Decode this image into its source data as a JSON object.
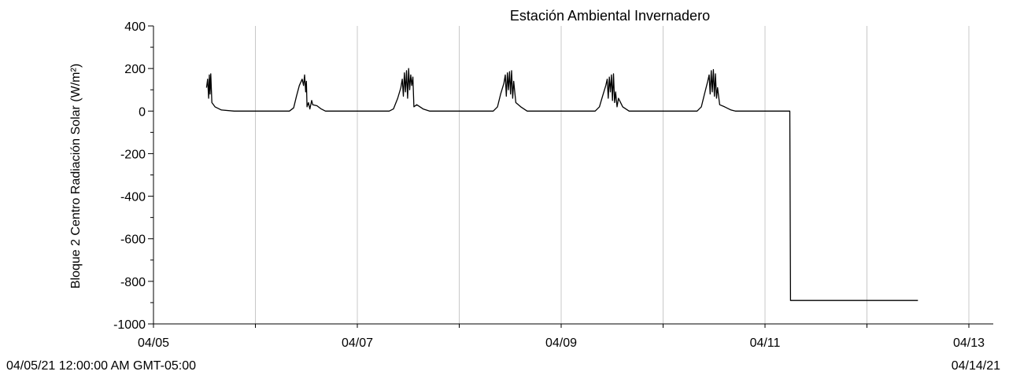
{
  "chart_data": {
    "type": "line",
    "title": "Estación Ambiental Invernadero",
    "ylabel": "Bloque 2 Centro Radiación Solar (W/m²)",
    "xlabel": "",
    "ylim": [
      -1000,
      400
    ],
    "yticks": [
      400,
      200,
      0,
      -200,
      -400,
      -600,
      -800,
      -1000
    ],
    "xlim": [
      "2021-04-05",
      "2021-04-13"
    ],
    "xtick_labels": [
      {
        "x": "2021-04-05",
        "label": "04/05"
      },
      {
        "x": "2021-04-07",
        "label": "04/07"
      },
      {
        "x": "2021-04-09",
        "label": "04/09"
      },
      {
        "x": "2021-04-11",
        "label": "04/11"
      },
      {
        "x": "2021-04-13",
        "label": "04/13"
      }
    ],
    "vertical_grid": [
      "2021-04-06",
      "2021-04-07",
      "2021-04-08",
      "2021-04-09",
      "2021-04-10",
      "2021-04-11",
      "2021-04-12",
      "2021-04-13"
    ],
    "grid": "vertical",
    "legend": "none",
    "line_color": "#000000",
    "series": [
      {
        "values": [
          [
            "2021-04-05 12:30",
            110
          ],
          [
            "2021-04-05 12:45",
            150
          ],
          [
            "2021-04-05 13:00",
            60
          ],
          [
            "2021-04-05 13:10",
            170
          ],
          [
            "2021-04-05 13:20",
            80
          ],
          [
            "2021-04-05 13:30",
            175
          ],
          [
            "2021-04-05 13:45",
            40
          ],
          [
            "2021-04-05 14:30",
            20
          ],
          [
            "2021-04-05 16:00",
            5
          ],
          [
            "2021-04-05 19:00",
            0
          ],
          [
            "2021-04-06 08:00",
            0
          ],
          [
            "2021-04-06 09:00",
            15
          ],
          [
            "2021-04-06 09:40",
            70
          ],
          [
            "2021-04-06 10:20",
            120
          ],
          [
            "2021-04-06 11:00",
            150
          ],
          [
            "2021-04-06 11:20",
            120
          ],
          [
            "2021-04-06 11:35",
            170
          ],
          [
            "2021-04-06 11:50",
            90
          ],
          [
            "2021-04-06 12:00",
            140
          ],
          [
            "2021-04-06 12:10",
            20
          ],
          [
            "2021-04-06 12:30",
            40
          ],
          [
            "2021-04-06 12:50",
            10
          ],
          [
            "2021-04-06 13:15",
            50
          ],
          [
            "2021-04-06 13:30",
            30
          ],
          [
            "2021-04-06 14:30",
            25
          ],
          [
            "2021-04-06 15:30",
            10
          ],
          [
            "2021-04-06 16:30",
            0
          ],
          [
            "2021-04-07 07:30",
            0
          ],
          [
            "2021-04-07 08:30",
            10
          ],
          [
            "2021-04-07 09:30",
            60
          ],
          [
            "2021-04-07 10:15",
            110
          ],
          [
            "2021-04-07 10:35",
            150
          ],
          [
            "2021-04-07 10:50",
            70
          ],
          [
            "2021-04-07 11:05",
            180
          ],
          [
            "2021-04-07 11:20",
            90
          ],
          [
            "2021-04-07 11:35",
            190
          ],
          [
            "2021-04-07 11:50",
            60
          ],
          [
            "2021-04-07 12:05",
            200
          ],
          [
            "2021-04-07 12:20",
            100
          ],
          [
            "2021-04-07 12:35",
            170
          ],
          [
            "2021-04-07 12:50",
            120
          ],
          [
            "2021-04-07 13:05",
            160
          ],
          [
            "2021-04-07 13:20",
            20
          ],
          [
            "2021-04-07 14:00",
            30
          ],
          [
            "2021-04-07 15:30",
            10
          ],
          [
            "2021-04-07 17:00",
            0
          ],
          [
            "2021-04-08 08:00",
            0
          ],
          [
            "2021-04-08 09:00",
            20
          ],
          [
            "2021-04-08 09:45",
            80
          ],
          [
            "2021-04-08 10:30",
            130
          ],
          [
            "2021-04-08 10:50",
            170
          ],
          [
            "2021-04-08 11:05",
            70
          ],
          [
            "2021-04-08 11:20",
            180
          ],
          [
            "2021-04-08 11:35",
            100
          ],
          [
            "2021-04-08 11:50",
            185
          ],
          [
            "2021-04-08 12:05",
            80
          ],
          [
            "2021-04-08 12:20",
            190
          ],
          [
            "2021-04-08 12:35",
            60
          ],
          [
            "2021-04-08 12:50",
            140
          ],
          [
            "2021-04-08 13:20",
            40
          ],
          [
            "2021-04-08 14:30",
            20
          ],
          [
            "2021-04-08 16:00",
            0
          ],
          [
            "2021-04-09 08:00",
            0
          ],
          [
            "2021-04-09 09:00",
            20
          ],
          [
            "2021-04-09 09:45",
            70
          ],
          [
            "2021-04-09 10:30",
            120
          ],
          [
            "2021-04-09 10:50",
            150
          ],
          [
            "2021-04-09 11:05",
            60
          ],
          [
            "2021-04-09 11:20",
            160
          ],
          [
            "2021-04-09 11:35",
            90
          ],
          [
            "2021-04-09 11:50",
            170
          ],
          [
            "2021-04-09 12:05",
            50
          ],
          [
            "2021-04-09 12:20",
            175
          ],
          [
            "2021-04-09 12:35",
            40
          ],
          [
            "2021-04-09 12:50",
            90
          ],
          [
            "2021-04-09 13:10",
            20
          ],
          [
            "2021-04-09 13:30",
            60
          ],
          [
            "2021-04-09 14:30",
            20
          ],
          [
            "2021-04-09 16:00",
            0
          ],
          [
            "2021-04-10 08:00",
            0
          ],
          [
            "2021-04-10 09:00",
            20
          ],
          [
            "2021-04-10 09:45",
            80
          ],
          [
            "2021-04-10 10:30",
            140
          ],
          [
            "2021-04-10 10:50",
            170
          ],
          [
            "2021-04-10 11:05",
            80
          ],
          [
            "2021-04-10 11:20",
            190
          ],
          [
            "2021-04-10 11:35",
            90
          ],
          [
            "2021-04-10 11:50",
            195
          ],
          [
            "2021-04-10 12:05",
            70
          ],
          [
            "2021-04-10 12:20",
            175
          ],
          [
            "2021-04-10 12:35",
            60
          ],
          [
            "2021-04-10 12:50",
            110
          ],
          [
            "2021-04-10 13:20",
            30
          ],
          [
            "2021-04-10 14:30",
            20
          ],
          [
            "2021-04-10 16:00",
            5
          ],
          [
            "2021-04-10 17:00",
            0
          ],
          [
            "2021-04-11 05:50",
            0
          ],
          [
            "2021-04-11 06:00",
            -890
          ],
          [
            "2021-04-12 12:00",
            -890
          ]
        ]
      }
    ]
  },
  "footer": {
    "start_caption": "04/05/21 12:00:00 AM GMT-05:00",
    "end_caption": "04/14/21"
  }
}
